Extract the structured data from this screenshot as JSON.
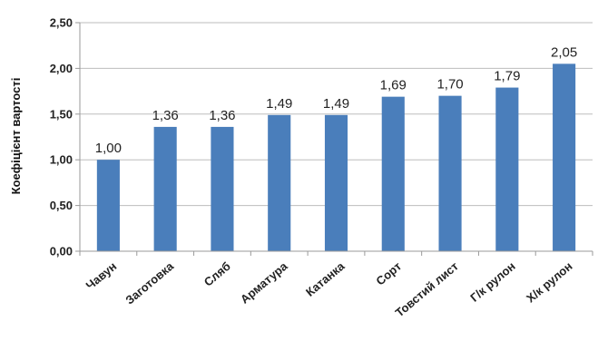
{
  "chart_data": {
    "type": "bar",
    "title": "",
    "xlabel": "",
    "ylabel": "Коефіцієнт вартості",
    "categories": [
      "Чавун",
      "Заготовка",
      "Сляб",
      "Арматура",
      "Катанка",
      "Сорт",
      "Товстий лист",
      "Г/к рулон",
      "Х/к рулон"
    ],
    "values": [
      1.0,
      1.36,
      1.36,
      1.49,
      1.49,
      1.69,
      1.7,
      1.79,
      2.05
    ],
    "data_labels": [
      "1,00",
      "1,36",
      "1,36",
      "1,49",
      "1,49",
      "1,69",
      "1,70",
      "1,79",
      "2,05"
    ],
    "ylim": [
      0,
      2.5
    ],
    "yticks": [
      0,
      0.5,
      1.0,
      1.5,
      2.0,
      2.5
    ],
    "ytick_labels": [
      "0,00",
      "0,50",
      "1,00",
      "1,50",
      "2,00",
      "2,50"
    ],
    "grid": true,
    "legend": "none",
    "colors": {
      "bar": "#4a7ebb",
      "grid": "#bdbdbd",
      "axis": "#9a9a9a"
    }
  }
}
